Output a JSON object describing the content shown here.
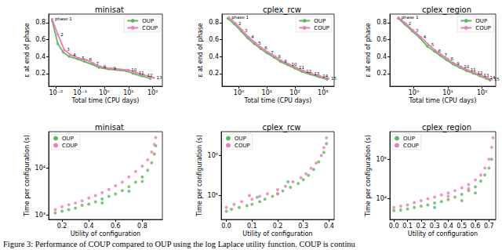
{
  "caption": "Figure 3: Performance of COUP compared to OUP using the log Laplace utility function. COUP is continu",
  "chart_data": [
    {
      "type": "line",
      "title": "minisat",
      "x_label": "Total time (CPU days)",
      "y_label": "ε at end of phase",
      "log": "x",
      "grid": false,
      "legend": "upper right",
      "xlim": [
        0.005,
        250
      ],
      "ylim": [
        0.05,
        0.9
      ],
      "xticks": [
        {
          "value": 0.01,
          "label": "10⁻²"
        },
        {
          "value": 0.1,
          "label": "10⁻¹"
        },
        {
          "value": 1,
          "label": "10⁰"
        },
        {
          "value": 10,
          "label": "10¹"
        },
        {
          "value": 100,
          "label": "10²"
        }
      ],
      "yticks": [
        0.2,
        0.4,
        0.6,
        0.8
      ],
      "phase_labels": [
        "phase 1",
        "2",
        "3",
        "4",
        "5",
        "6",
        "7",
        "8",
        "9",
        "10",
        "11",
        "12",
        "13"
      ],
      "series": [
        {
          "name": "OUP",
          "color": "#5cb85c",
          "marker": "circle",
          "line_style": "solid",
          "x": [
            0.007,
            0.012,
            0.02,
            0.035,
            0.08,
            0.15,
            0.3,
            0.6,
            1.5,
            8,
            15,
            35,
            80
          ],
          "values": [
            0.82,
            0.55,
            0.45,
            0.4,
            0.37,
            0.34,
            0.31,
            0.27,
            0.25,
            0.23,
            0.2,
            0.17,
            0.14
          ]
        },
        {
          "name": "COUP",
          "color": "#f07ab4",
          "marker": "circle",
          "line_style": "solid",
          "x": [
            0.007,
            0.012,
            0.022,
            0.04,
            0.09,
            0.18,
            0.35,
            0.7,
            1.8,
            10,
            20,
            45,
            110
          ],
          "values": [
            0.84,
            0.66,
            0.48,
            0.42,
            0.38,
            0.36,
            0.32,
            0.28,
            0.26,
            0.24,
            0.21,
            0.18,
            0.15
          ]
        }
      ]
    },
    {
      "type": "line",
      "title": "cplex_rcw",
      "x_label": "Total time (CPU days)",
      "y_label": "ε at end of phase",
      "log": "x",
      "grid": false,
      "legend": "upper right",
      "xlim": [
        0.25,
        2500
      ],
      "ylim": [
        0.05,
        0.9
      ],
      "xticks": [
        {
          "value": 1,
          "label": "10⁰"
        },
        {
          "value": 10,
          "label": "10¹"
        },
        {
          "value": 100,
          "label": "10²"
        },
        {
          "value": 1000,
          "label": "10³"
        }
      ],
      "yticks": [
        0.2,
        0.4,
        0.6,
        0.8
      ],
      "phase_labels": [
        "phase 1",
        "2",
        "3",
        "4",
        "5",
        "6",
        "7",
        "8",
        "9",
        "10",
        "11",
        "12",
        "13",
        "14",
        "15"
      ],
      "series": [
        {
          "name": "OUP",
          "color": "#5cb85c",
          "marker": "circle",
          "line_style": "solid",
          "x": [
            0.4,
            0.7,
            1.2,
            2,
            3.5,
            6,
            10,
            18,
            30,
            55,
            100,
            180,
            350,
            700,
            1400
          ],
          "values": [
            0.85,
            0.78,
            0.7,
            0.62,
            0.55,
            0.49,
            0.44,
            0.39,
            0.34,
            0.3,
            0.26,
            0.22,
            0.19,
            0.16,
            0.13
          ]
        },
        {
          "name": "COUP",
          "color": "#f07ab4",
          "marker": "circle",
          "line_style": "solid",
          "x": [
            0.44,
            0.77,
            1.3,
            2.2,
            3.9,
            6.6,
            11,
            20,
            33,
            60,
            110,
            200,
            380,
            770,
            1550
          ],
          "values": [
            0.86,
            0.79,
            0.71,
            0.63,
            0.56,
            0.5,
            0.45,
            0.4,
            0.35,
            0.31,
            0.27,
            0.23,
            0.2,
            0.17,
            0.14
          ]
        }
      ]
    },
    {
      "type": "line",
      "title": "cplex_region",
      "x_label": "Total time (CPU days)",
      "y_label": "ε at end of phase",
      "log": "x",
      "grid": false,
      "legend": "upper right",
      "xlim": [
        0.2,
        250
      ],
      "ylim": [
        0.05,
        0.9
      ],
      "xticks": [
        {
          "value": 1,
          "label": "10⁰"
        },
        {
          "value": 10,
          "label": "10¹"
        },
        {
          "value": 100,
          "label": "10²"
        }
      ],
      "yticks": [
        0.2,
        0.4,
        0.6,
        0.8
      ],
      "phase_labels": [
        "phase 1",
        "2",
        "3",
        "4",
        "5",
        "6",
        "7",
        "8",
        "9",
        "10",
        "11",
        "12",
        "13",
        "14",
        "15"
      ],
      "series": [
        {
          "name": "OUP",
          "color": "#5cb85c",
          "marker": "circle",
          "line_style": "solid",
          "x": [
            0.35,
            0.55,
            0.9,
            1.5,
            2.5,
            4,
            6,
            9,
            14,
            22,
            35,
            55,
            85,
            130,
            170
          ],
          "values": [
            0.85,
            0.78,
            0.7,
            0.62,
            0.52,
            0.46,
            0.41,
            0.36,
            0.31,
            0.27,
            0.23,
            0.2,
            0.17,
            0.14,
            0.12
          ]
        },
        {
          "name": "COUP",
          "color": "#f07ab4",
          "marker": "circle",
          "line_style": "solid",
          "x": [
            0.36,
            0.58,
            0.95,
            1.6,
            2.7,
            4.3,
            6.5,
            10,
            15,
            24,
            38,
            60,
            92,
            140,
            185
          ],
          "values": [
            0.86,
            0.79,
            0.71,
            0.63,
            0.54,
            0.47,
            0.42,
            0.37,
            0.32,
            0.28,
            0.24,
            0.21,
            0.18,
            0.15,
            0.13
          ]
        }
      ]
    },
    {
      "type": "scatter",
      "title": "minisat",
      "x_label": "Utility of configuration",
      "y_label": "Time per configuration (s)",
      "log": "y",
      "grid": false,
      "legend": "upper left",
      "xlim": [
        0.1,
        0.95
      ],
      "ylim": [
        800,
        60000
      ],
      "xticks": [
        0.2,
        0.4,
        0.6,
        0.8
      ],
      "yticks": [
        {
          "value": 1000,
          "label": "10³"
        },
        {
          "value": 10000,
          "label": "10⁴"
        }
      ],
      "series": [
        {
          "name": "OUP",
          "color": "#5cb85c",
          "marker": "circle",
          "x": [
            0.15,
            0.2,
            0.25,
            0.3,
            0.35,
            0.4,
            0.45,
            0.5,
            0.55,
            0.6,
            0.65,
            0.7,
            0.75,
            0.8,
            0.84,
            0.87,
            0.89,
            0.9,
            0.5,
            0.7,
            0.8
          ],
          "values": [
            1100,
            1200,
            1300,
            1400,
            1600,
            1700,
            1900,
            2200,
            2500,
            2800,
            3300,
            4000,
            5000,
            6500,
            9000,
            13000,
            20000,
            30000,
            1800,
            3200,
            5200
          ]
        },
        {
          "name": "COUP",
          "color": "#f07ab4",
          "marker": "circle",
          "x": [
            0.15,
            0.2,
            0.3,
            0.4,
            0.5,
            0.55,
            0.6,
            0.65,
            0.7,
            0.75,
            0.8,
            0.84,
            0.87,
            0.89,
            0.9,
            0.45,
            0.35,
            0.25
          ],
          "values": [
            1300,
            1500,
            1800,
            2300,
            3000,
            3500,
            4200,
            5000,
            6500,
            8500,
            11000,
            15000,
            22000,
            32000,
            45000,
            2600,
            2000,
            1650
          ]
        }
      ]
    },
    {
      "type": "scatter",
      "title": "cplex_rcw",
      "x_label": "Utility of configuration",
      "y_label": "Time per configuration (s)",
      "log": "y",
      "grid": false,
      "legend": "upper left",
      "xlim": [
        -0.02,
        0.42
      ],
      "ylim": [
        25000,
        4000000
      ],
      "xticks": [
        {
          "value": 0,
          "label": "0.0"
        },
        0.1,
        0.2,
        0.3,
        0.4
      ],
      "yticks": [
        {
          "value": 100000,
          "label": "10⁵"
        },
        {
          "value": 1000000,
          "label": "10⁶"
        }
      ],
      "series": [
        {
          "name": "OUP",
          "color": "#5cb85c",
          "marker": "circle",
          "x": [
            0.0,
            0.02,
            0.05,
            0.08,
            0.1,
            0.13,
            0.15,
            0.18,
            0.2,
            0.22,
            0.25,
            0.28,
            0.3,
            0.32,
            0.34,
            0.36,
            0.38,
            0.39,
            0.12,
            0.24
          ],
          "values": [
            40000,
            45000,
            50000,
            55000,
            60000,
            70000,
            80000,
            95000,
            110000,
            130000,
            160000,
            200000,
            250000,
            320000,
            450000,
            700000,
            1200000,
            2000000,
            90000,
            220000
          ]
        },
        {
          "name": "COUP",
          "color": "#f07ab4",
          "marker": "circle",
          "x": [
            0.0,
            0.03,
            0.06,
            0.1,
            0.13,
            0.16,
            0.2,
            0.23,
            0.26,
            0.29,
            0.31,
            0.33,
            0.35,
            0.37,
            0.38,
            0.39,
            0.09,
            0.2
          ],
          "values": [
            50000,
            60000,
            70000,
            80000,
            95000,
            110000,
            140000,
            170000,
            220000,
            280000,
            350000,
            480000,
            650000,
            1000000,
            1600000,
            2800000,
            100000,
            110000
          ]
        }
      ]
    },
    {
      "type": "scatter",
      "title": "cplex_region",
      "x_label": "Utility of configuration",
      "y_label": "Time per configuration (s)",
      "log": "y",
      "grid": false,
      "legend": "upper left",
      "xlim": [
        -0.03,
        0.75
      ],
      "ylim": [
        3000,
        500000
      ],
      "xticks": [
        {
          "value": 0,
          "label": "0.0"
        },
        0.1,
        0.2,
        0.3,
        0.4,
        0.5,
        0.6,
        0.7
      ],
      "yticks": [
        {
          "value": 10000,
          "label": "10⁴"
        },
        {
          "value": 100000,
          "label": "10⁵"
        }
      ],
      "series": [
        {
          "name": "OUP",
          "color": "#5cb85c",
          "marker": "circle",
          "x": [
            0.0,
            0.05,
            0.1,
            0.15,
            0.2,
            0.25,
            0.3,
            0.35,
            0.4,
            0.45,
            0.5,
            0.55,
            0.6,
            0.64,
            0.67,
            0.7,
            0.72,
            0.5,
            0.6,
            0.3
          ],
          "values": [
            5000,
            5200,
            5500,
            6000,
            6500,
            7000,
            7800,
            8500,
            9500,
            11000,
            13000,
            16000,
            20000,
            28000,
            40000,
            60000,
            100000,
            9000,
            14000,
            6000
          ]
        },
        {
          "name": "COUP",
          "color": "#f07ab4",
          "marker": "circle",
          "x": [
            0.0,
            0.05,
            0.1,
            0.15,
            0.2,
            0.25,
            0.3,
            0.35,
            0.4,
            0.45,
            0.5,
            0.55,
            0.6,
            0.64,
            0.67,
            0.7,
            0.72,
            0.73,
            0.4,
            0.55
          ],
          "values": [
            6000,
            6500,
            7000,
            8000,
            9000,
            10000,
            11000,
            12500,
            14000,
            16000,
            19000,
            23000,
            30000,
            40000,
            60000,
            100000,
            200000,
            350000,
            11500,
            18000
          ]
        }
      ]
    }
  ]
}
